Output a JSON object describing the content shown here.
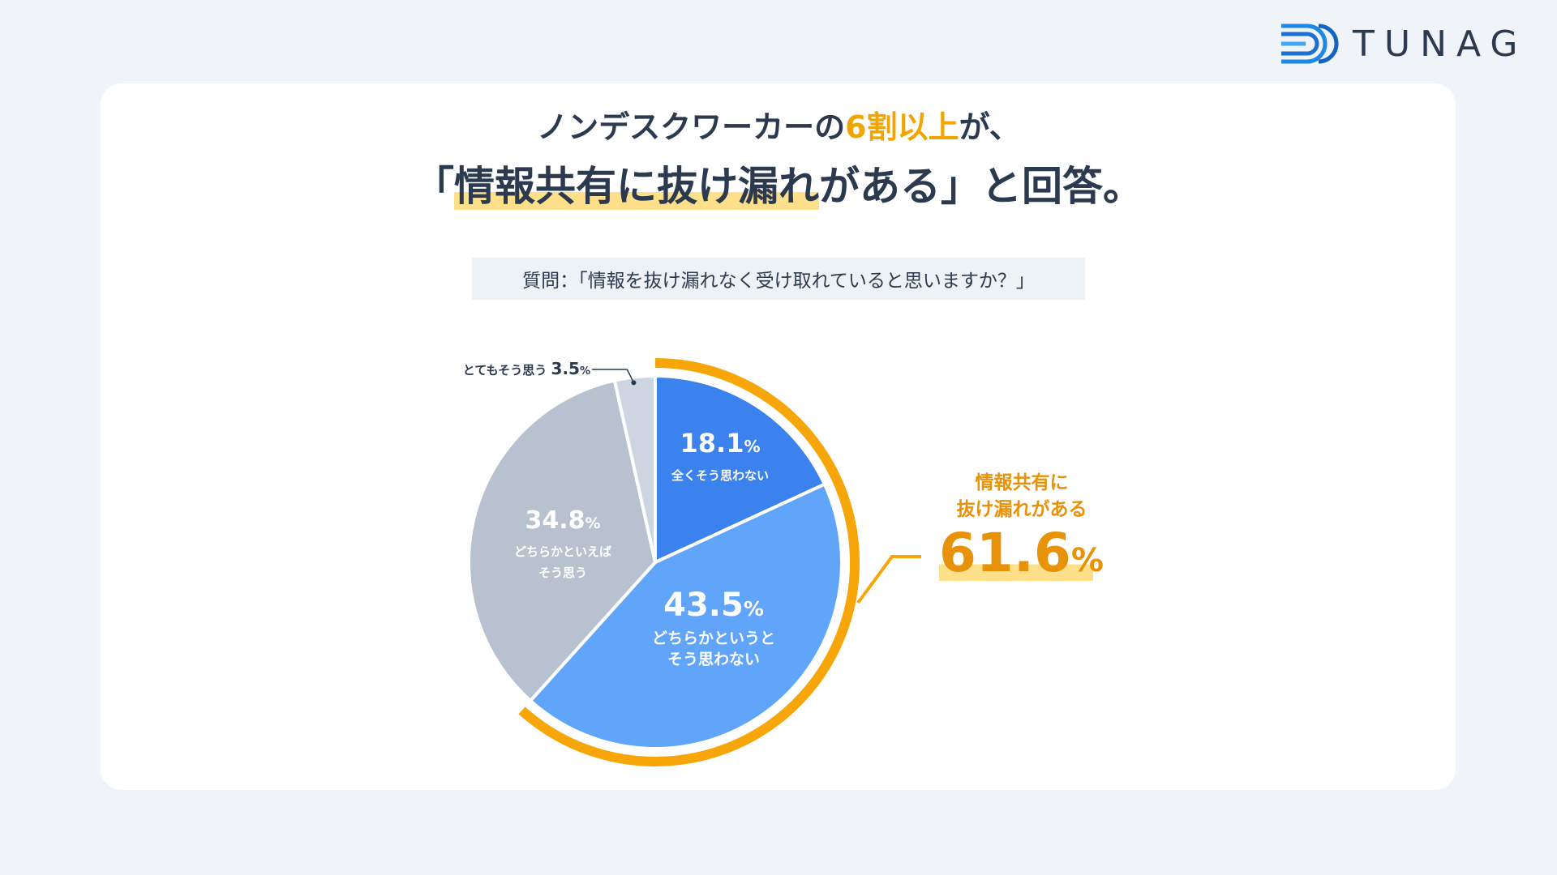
{
  "logo": {
    "text": "TUNAG"
  },
  "headline": {
    "line1_pre": "ノンデスクワーカーの",
    "line1_accent": "6割以上",
    "line1_post": "が、",
    "line2_open": "「",
    "line2_highlight": "情報共有に抜け漏れ",
    "line2_post": "がある」と回答。"
  },
  "question": "質問：「情報を抜け漏れなく受け取れていると思いますか？」",
  "callout": {
    "line1": "情報共有に",
    "line2": "抜け漏れがある",
    "value": "61.6",
    "unit": "%"
  },
  "chart_data": {
    "type": "pie",
    "start_angle_deg": 0,
    "direction": "clockwise",
    "slices": [
      {
        "label": "全くそう思わない",
        "value": 18.1,
        "color": "#3b82ee"
      },
      {
        "label": "どちらかというとそう思わない",
        "label_lines": [
          "どちらかというと",
          "そう思わない"
        ],
        "value": 43.5,
        "color": "#60a5fa"
      },
      {
        "label": "どちらかといえばそう思う",
        "label_lines": [
          "どちらかといえば",
          "そう思う"
        ],
        "value": 34.8,
        "color": "#b7c1cf"
      },
      {
        "label": "とてもそう思う",
        "value": 3.5,
        "color": "#cdd6e0"
      }
    ],
    "unit": "%",
    "highlight_arc": {
      "value": 61.6,
      "color": "#f6a609"
    }
  }
}
